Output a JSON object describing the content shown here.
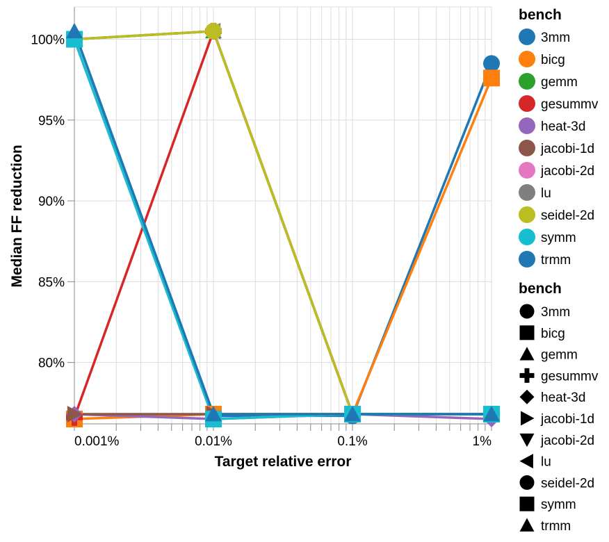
{
  "chart_data": {
    "type": "line",
    "x_scale": "log",
    "x": [
      0.001,
      0.01,
      0.1,
      1
    ],
    "x_tick_labels": [
      "0.001%",
      "0.01%",
      "0.1%",
      "1%"
    ],
    "xlabel": "Target relative error",
    "ylabel": "Median FF reduction",
    "y_tick_labels": [
      "80%",
      "85%",
      "90%",
      "95%",
      "100%"
    ],
    "y_ticks": [
      80,
      85,
      90,
      95,
      100
    ],
    "ylim": [
      76.2,
      102.0
    ],
    "grid": true,
    "legend_placement": "right",
    "legend_color_title": "bench",
    "legend_shape_title": "bench",
    "series": [
      {
        "name": "3mm",
        "color": "#1f77b4",
        "shape": "circle",
        "values": [
          100.0,
          76.7,
          76.7,
          98.5
        ]
      },
      {
        "name": "bicg",
        "color": "#ff7f0e",
        "shape": "square",
        "values": [
          76.5,
          76.8,
          76.8,
          97.6
        ]
      },
      {
        "name": "gemm",
        "color": "#2ca02c",
        "shape": "triangle-up",
        "values": [
          100.0,
          100.5,
          76.8,
          76.8
        ]
      },
      {
        "name": "gesummv",
        "color": "#d62728",
        "shape": "cross",
        "values": [
          76.6,
          100.5,
          76.8,
          76.8
        ]
      },
      {
        "name": "heat-3d",
        "color": "#9467bd",
        "shape": "diamond",
        "values": [
          76.8,
          76.5,
          76.8,
          76.5
        ]
      },
      {
        "name": "jacobi-1d",
        "color": "#8c564b",
        "shape": "triangle-right",
        "values": [
          76.8,
          76.8,
          76.8,
          76.8
        ]
      },
      {
        "name": "jacobi-2d",
        "color": "#e377c2",
        "shape": "triangle-down",
        "values": [
          100.0,
          76.5,
          76.8,
          76.8
        ]
      },
      {
        "name": "lu",
        "color": "#7f7f7f",
        "shape": "triangle-left",
        "values": [
          100.0,
          100.5,
          76.8,
          76.8
        ]
      },
      {
        "name": "seidel-2d",
        "color": "#bcbd22",
        "shape": "circle",
        "values": [
          100.0,
          100.5,
          76.8,
          76.8
        ]
      },
      {
        "name": "symm",
        "color": "#17becf",
        "shape": "square",
        "values": [
          100.0,
          76.5,
          76.8,
          76.8
        ]
      },
      {
        "name": "trmm",
        "color": "#1f77b4",
        "shape": "triangle-up",
        "values": [
          100.5,
          76.8,
          76.8,
          76.8
        ]
      }
    ]
  }
}
